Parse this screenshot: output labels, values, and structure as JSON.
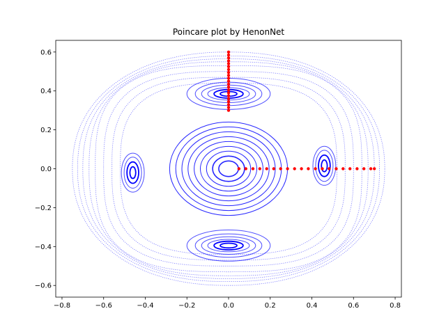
{
  "chart_data": {
    "type": "scatter",
    "title": "Poincare plot by HenonNet",
    "xlabel": "",
    "ylabel": "",
    "xlim": [
      -0.83,
      0.83
    ],
    "ylim": [
      -0.66,
      0.66
    ],
    "xticks": [
      -0.8,
      -0.6,
      -0.4,
      -0.2,
      0.0,
      0.2,
      0.4,
      0.6,
      0.8
    ],
    "xtick_labels": [
      "−0.8",
      "−0.6",
      "−0.4",
      "−0.2",
      "0.0",
      "0.2",
      "0.4",
      "0.6",
      "0.8"
    ],
    "yticks": [
      -0.6,
      -0.4,
      -0.2,
      0.0,
      0.2,
      0.4,
      0.6
    ],
    "ytick_labels": [
      "−0.6",
      "−0.4",
      "−0.2",
      "0.0",
      "0.2",
      "0.4",
      "0.6"
    ],
    "grid": false,
    "colors": {
      "orbits": "#0000ff",
      "initial_points": "#ff0000"
    },
    "central_orbit_radii": [
      0.04,
      0.065,
      0.09,
      0.115,
      0.14,
      0.165,
      0.19,
      0.215,
      0.24
    ],
    "outer_orbits": [
      {
        "a": 0.52,
        "b": 0.44,
        "n": 3.0
      },
      {
        "a": 0.56,
        "b": 0.47,
        "n": 3.0
      },
      {
        "a": 0.6,
        "b": 0.5,
        "n": 3.0
      },
      {
        "a": 0.64,
        "b": 0.53,
        "n": 3.0
      },
      {
        "a": 0.67,
        "b": 0.55,
        "n": 2.6
      },
      {
        "a": 0.7,
        "b": 0.565,
        "n": 2.4
      },
      {
        "a": 0.725,
        "b": 0.58,
        "n": 2.3
      },
      {
        "a": 0.75,
        "b": 0.6,
        "n": 2.2
      }
    ],
    "islands": [
      {
        "cx": -0.46,
        "cy": -0.02,
        "rx": [
          0.014,
          0.028,
          0.042,
          0.055
        ],
        "ry": [
          0.03,
          0.055,
          0.08,
          0.1
        ]
      },
      {
        "cx": 0.46,
        "cy": 0.015,
        "rx": [
          0.014,
          0.028,
          0.042,
          0.055
        ],
        "ry": [
          0.03,
          0.055,
          0.08,
          0.1
        ]
      },
      {
        "cx": 0.0,
        "cy": 0.385,
        "rx": [
          0.04,
          0.07,
          0.1,
          0.13,
          0.16,
          0.2
        ],
        "ry": [
          0.012,
          0.022,
          0.032,
          0.045,
          0.06,
          0.08
        ]
      },
      {
        "cx": 0.0,
        "cy": -0.395,
        "rx": [
          0.04,
          0.07,
          0.1,
          0.13,
          0.16,
          0.2
        ],
        "ry": [
          0.012,
          0.022,
          0.032,
          0.045,
          0.06,
          0.08
        ]
      }
    ],
    "initial_points_horizontal": {
      "x": [
        0.05,
        0.083,
        0.117,
        0.15,
        0.183,
        0.217,
        0.25,
        0.283,
        0.317,
        0.35,
        0.383,
        0.417,
        0.45,
        0.483,
        0.517,
        0.55,
        0.583,
        0.617,
        0.65,
        0.683,
        0.7
      ],
      "y": 0.0
    },
    "initial_points_vertical": {
      "x": 0.0,
      "y": [
        0.3,
        0.315,
        0.33,
        0.345,
        0.36,
        0.375,
        0.39,
        0.405,
        0.42,
        0.435,
        0.45,
        0.465,
        0.48,
        0.495,
        0.51,
        0.525,
        0.54,
        0.555,
        0.57,
        0.585,
        0.6
      ]
    }
  }
}
